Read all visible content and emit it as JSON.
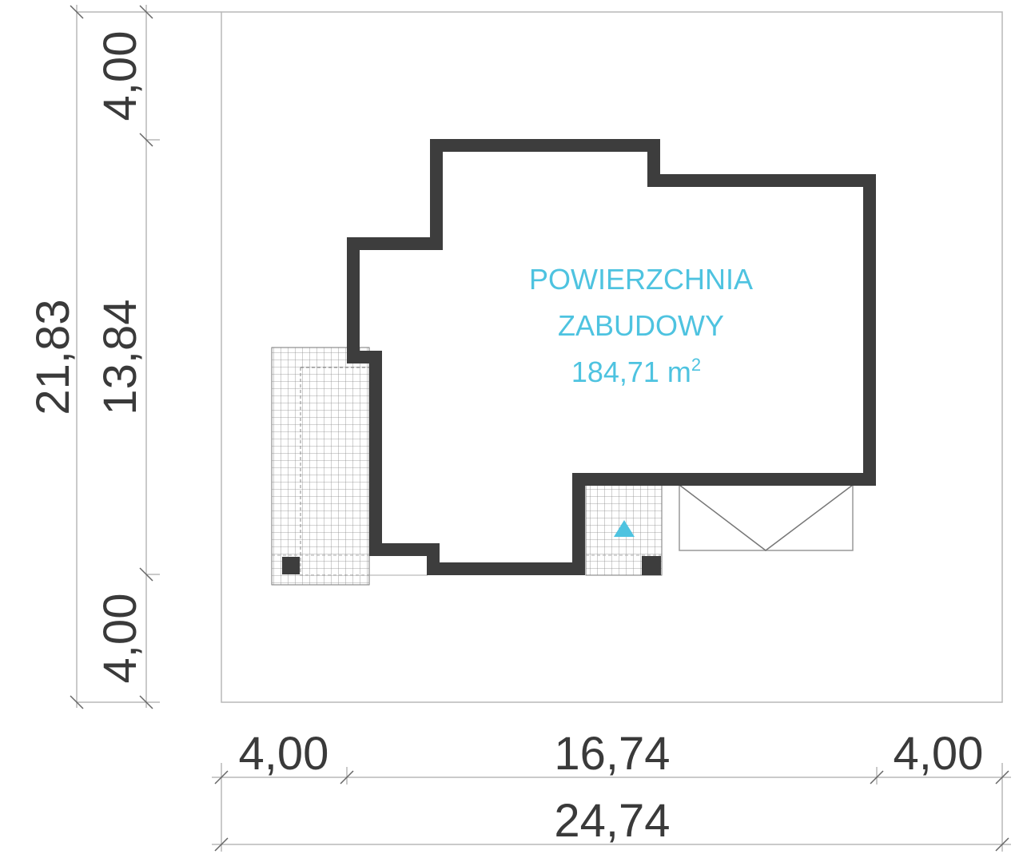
{
  "plot": {
    "area_label_line1": "POWIERZCHNIA",
    "area_label_line2": "ZABUDOWY",
    "area_value": "184,71 m",
    "area_unit_sup": "2"
  },
  "dimensions": {
    "vertical_total": "21,83",
    "vertical_top_margin": "4,00",
    "vertical_building": "13,84",
    "vertical_bottom_margin": "4,00",
    "horizontal_left_margin": "4,00",
    "horizontal_building": "16,74",
    "horizontal_right_margin": "4,00",
    "horizontal_total": "24,74"
  },
  "colors": {
    "wall": "#3d3d3d",
    "area_text": "#4ec3e0",
    "dimension_text": "#3a3a3a",
    "plot_border": "#b8b8b8",
    "grid": "#888888"
  }
}
